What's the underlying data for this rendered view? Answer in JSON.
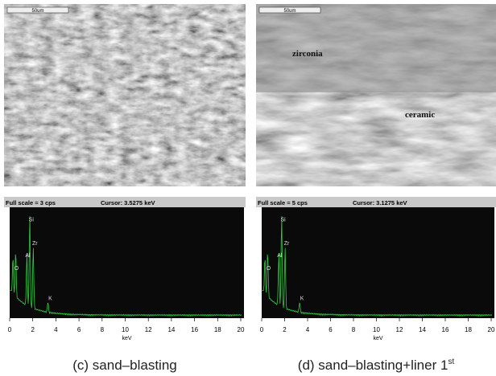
{
  "panels": [
    {
      "image": {
        "scale_bar": "50um"
      },
      "spectrum": {
        "full_scale": "Full scale = 3 cps",
        "cursor": "Cursor: 3.5275 keV",
        "peaks": [
          "O",
          "Al",
          "Si",
          "Zr",
          "K"
        ],
        "xticks": [
          0,
          2,
          4,
          6,
          8,
          10,
          12,
          14,
          16,
          18,
          20
        ],
        "xlabel": "keV"
      },
      "caption": "(c) sand–blasting"
    },
    {
      "image": {
        "scale_bar": "50um",
        "labels": [
          "zirconia",
          "ceramic"
        ]
      },
      "spectrum": {
        "full_scale": "Full scale = 5 cps",
        "cursor": "Cursor: 3.1275 keV",
        "peaks": [
          "O",
          "Al",
          "Si",
          "Zr",
          "K"
        ],
        "xticks": [
          0,
          2,
          4,
          6,
          8,
          10,
          12,
          14,
          16,
          18,
          20
        ],
        "xlabel": "keV"
      },
      "caption": "(d) sand–blasting+liner 1",
      "caption_sup": "st"
    }
  ]
}
